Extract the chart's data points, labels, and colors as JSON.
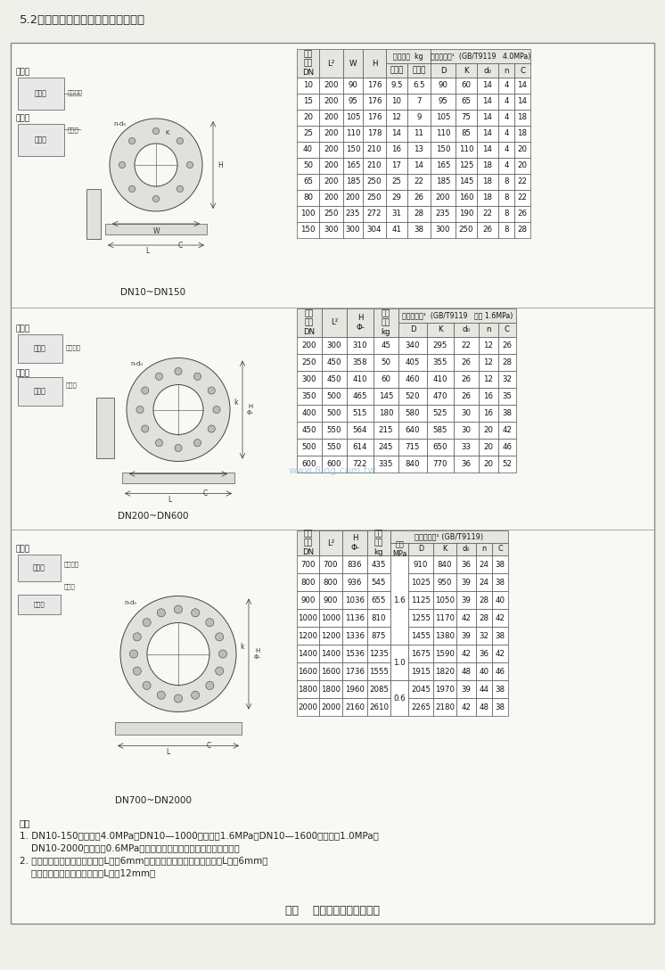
{
  "title_text": "5.2传感器外形和安装尺寸，见图四。",
  "bg_color": "#f0f0eb",
  "inner_bg": "#f8f8f5",
  "figure_caption": "图四    传感器外形和安装尺寸",
  "notes": [
    "注：",
    "1. DN10-150公称压力4.0MPa；DN10—1000公称压力1.6MPa；DN10—1600公称压力1.0MPa；",
    "    DN10-2000公称压力0.6MPa。其它特殊压力等级可按工程要求设计。",
    "2. 当安装一个接地法兰时，尺寸L增加6mm；当安装进口保护法兰时，尺寸L增加6mm；",
    "    当安装衬里保护法兰时，尺寸L增加12mm。"
  ],
  "label_dn10_dn150": "DN10~DN150",
  "label_dn200_dn600": "DN200~DN600",
  "label_dn700_dn2000": "DN700~DN2000",
  "table1_data": [
    [
      "10",
      "200",
      "90",
      "176",
      "9.5",
      "6.5",
      "90",
      "60",
      "14",
      "4",
      "14"
    ],
    [
      "15",
      "200",
      "95",
      "176",
      "10",
      "7",
      "95",
      "65",
      "14",
      "4",
      "14"
    ],
    [
      "20",
      "200",
      "105",
      "176",
      "12",
      "9",
      "105",
      "75",
      "14",
      "4",
      "18"
    ],
    [
      "25",
      "200",
      "110",
      "178",
      "14",
      "11",
      "110",
      "85",
      "14",
      "4",
      "18"
    ],
    [
      "40",
      "200",
      "150",
      "210",
      "16",
      "13",
      "150",
      "110",
      "14",
      "4",
      "20"
    ],
    [
      "50",
      "200",
      "165",
      "210",
      "17",
      "14",
      "165",
      "125",
      "18",
      "4",
      "20"
    ],
    [
      "65",
      "200",
      "185",
      "250",
      "25",
      "22",
      "185",
      "145",
      "18",
      "8",
      "22"
    ],
    [
      "80",
      "200",
      "200",
      "250",
      "29",
      "26",
      "200",
      "160",
      "18",
      "8",
      "22"
    ],
    [
      "100",
      "250",
      "235",
      "272",
      "31",
      "28",
      "235",
      "190",
      "22",
      "8",
      "26"
    ],
    [
      "150",
      "300",
      "300",
      "304",
      "41",
      "38",
      "300",
      "250",
      "26",
      "8",
      "28"
    ]
  ],
  "table2_data": [
    [
      "200",
      "300",
      "310",
      "45",
      "340",
      "295",
      "22",
      "12",
      "26"
    ],
    [
      "250",
      "450",
      "358",
      "50",
      "405",
      "355",
      "26",
      "12",
      "28"
    ],
    [
      "300",
      "450",
      "410",
      "60",
      "460",
      "410",
      "26",
      "12",
      "32"
    ],
    [
      "350",
      "500",
      "465",
      "145",
      "520",
      "470",
      "26",
      "16",
      "35"
    ],
    [
      "400",
      "500",
      "515",
      "180",
      "580",
      "525",
      "30",
      "16",
      "38"
    ],
    [
      "450",
      "550",
      "564",
      "215",
      "640",
      "585",
      "30",
      "20",
      "42"
    ],
    [
      "500",
      "550",
      "614",
      "245",
      "715",
      "650",
      "33",
      "20",
      "46"
    ],
    [
      "600",
      "600",
      "722",
      "335",
      "840",
      "770",
      "36",
      "20",
      "52"
    ]
  ],
  "table3_data": [
    [
      "700",
      "700",
      "836",
      "435",
      "1.6",
      "910",
      "840",
      "36",
      "24",
      "38"
    ],
    [
      "800",
      "800",
      "936",
      "545",
      "1.6",
      "1025",
      "950",
      "39",
      "24",
      "38"
    ],
    [
      "900",
      "900",
      "1036",
      "655",
      "1.6",
      "1125",
      "1050",
      "39",
      "28",
      "40"
    ],
    [
      "1000",
      "1000",
      "1136",
      "810",
      "1.6",
      "1255",
      "1170",
      "42",
      "28",
      "42"
    ],
    [
      "1200",
      "1200",
      "1336",
      "875",
      "1.6",
      "1455",
      "1380",
      "39",
      "32",
      "38"
    ],
    [
      "1400",
      "1400",
      "1536",
      "1235",
      "1.0",
      "1675",
      "1590",
      "42",
      "36",
      "42"
    ],
    [
      "1600",
      "1600",
      "1736",
      "1555",
      "1.0",
      "1915",
      "1820",
      "48",
      "40",
      "46"
    ],
    [
      "1800",
      "1800",
      "1960",
      "2085",
      "0.6",
      "2045",
      "1970",
      "39",
      "44",
      "38"
    ],
    [
      "2000",
      "2000",
      "2160",
      "2610",
      "0.6",
      "2265",
      "2180",
      "42",
      "48",
      "38"
    ]
  ]
}
